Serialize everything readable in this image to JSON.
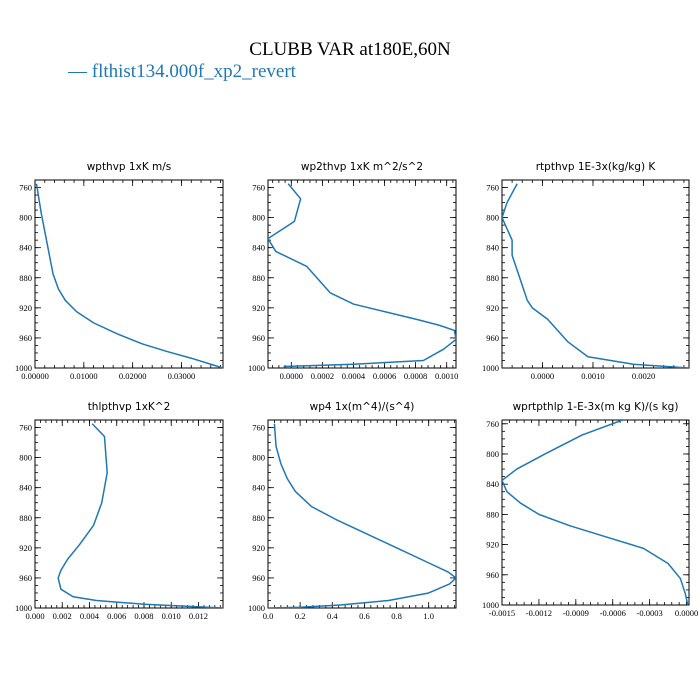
{
  "title": "CLUBB VAR at180E,60N",
  "legend": {
    "label": "— flthist134.000f_xp2_revert",
    "color": "#1f77b4"
  },
  "chart_data": [
    {
      "type": "line",
      "title": "wpthvp   1xK m/s",
      "series_name": "flthist134.000f_xp2_revert",
      "xlim": [
        0,
        0.0385
      ],
      "ylim": [
        1000,
        750
      ],
      "xticks": [
        0,
        0.01,
        0.02,
        0.03
      ],
      "xtick_labels": [
        "0.00000",
        "0.01000",
        "0.02000",
        "0.03000"
      ],
      "yticks": [
        760,
        800,
        840,
        880,
        920,
        960,
        1000
      ],
      "ytick_labels": [
        "760",
        "800",
        "840",
        "880",
        "920",
        "960",
        "1000"
      ],
      "x": [
        0.0003,
        0.0008,
        0.0013,
        0.0019,
        0.0025,
        0.0031,
        0.0037,
        0.0048,
        0.0062,
        0.0085,
        0.012,
        0.017,
        0.022,
        0.027,
        0.032,
        0.036,
        0.0385
      ],
      "y": [
        755,
        775,
        795,
        815,
        835,
        855,
        875,
        895,
        910,
        925,
        940,
        955,
        968,
        978,
        987,
        995,
        1000
      ]
    },
    {
      "type": "line",
      "title": "wp2thvp   1xK m^2/s^2",
      "series_name": "flthist134.000f_xp2_revert",
      "xlim": [
        -0.00015,
        0.00106
      ],
      "ylim": [
        1000,
        750
      ],
      "xticks": [
        0,
        0.0002,
        0.0004,
        0.0006,
        0.0008,
        0.001
      ],
      "xtick_labels": [
        "0.0000",
        "0.0002",
        "0.0004",
        "0.0006",
        "0.0008",
        "0.0010"
      ],
      "yticks": [
        760,
        800,
        840,
        880,
        920,
        960,
        1000
      ],
      "ytick_labels": [
        "760",
        "800",
        "840",
        "880",
        "920",
        "960",
        "1000"
      ],
      "x": [
        -2e-05,
        6e-05,
        2e-05,
        -0.00015,
        -0.0001,
        0.0001,
        0.00025,
        0.0004,
        0.0006,
        0.0008,
        0.00095,
        0.00105,
        0.00106,
        0.00098,
        0.00085,
        0.0004,
        -5e-05
      ],
      "y": [
        755,
        775,
        805,
        828,
        845,
        865,
        900,
        915,
        925,
        935,
        943,
        950,
        962,
        975,
        990,
        995,
        998
      ]
    },
    {
      "type": "line",
      "title": "rtpthvp   1E-3x(kg/kg) K",
      "series_name": "flthist134.000f_xp2_revert",
      "xlim": [
        -0.0008,
        0.0029
      ],
      "ylim": [
        1000,
        750
      ],
      "xticks": [
        0,
        0.001,
        0.002
      ],
      "xtick_labels": [
        "0.0000",
        "0.0010",
        "0.0020"
      ],
      "yticks": [
        760,
        800,
        840,
        880,
        920,
        960,
        1000
      ],
      "ytick_labels": [
        "760",
        "800",
        "840",
        "880",
        "920",
        "960",
        "1000"
      ],
      "x": [
        -0.0005,
        -0.0007,
        -0.0008,
        -0.0006,
        -0.0006,
        -0.0005,
        -0.0004,
        -0.0003,
        -0.0002,
        0.0001,
        0.0003,
        0.0005,
        0.0009,
        0.0018,
        0.0029
      ],
      "y": [
        755,
        780,
        800,
        830,
        850,
        870,
        890,
        910,
        920,
        935,
        950,
        965,
        985,
        995,
        1000
      ]
    },
    {
      "type": "line",
      "title": "thlpthvp   1xK^2",
      "series_name": "flthist134.000f_xp2_revert",
      "xlim": [
        0,
        0.0138
      ],
      "ylim": [
        1000,
        750
      ],
      "xticks": [
        0,
        0.002,
        0.004,
        0.006,
        0.008,
        0.01,
        0.012
      ],
      "xtick_labels": [
        "0.000",
        "0.002",
        "0.004",
        "0.006",
        "0.008",
        "0.010",
        "0.012"
      ],
      "yticks": [
        760,
        800,
        840,
        880,
        920,
        960,
        1000
      ],
      "ytick_labels": [
        "760",
        "800",
        "840",
        "880",
        "920",
        "960",
        "1000"
      ],
      "x": [
        0.0042,
        0.0051,
        0.0053,
        0.0049,
        0.0043,
        0.0033,
        0.0024,
        0.0019,
        0.0017,
        0.0019,
        0.0028,
        0.0045,
        0.008,
        0.0115,
        0.0138
      ],
      "y": [
        755,
        772,
        820,
        860,
        890,
        915,
        935,
        950,
        960,
        975,
        985,
        990,
        995,
        998,
        1000
      ]
    },
    {
      "type": "line",
      "title": "wp4   1x(m^4)/(s^4)",
      "series_name": "flthist134.000f_xp2_revert",
      "xlim": [
        0,
        1.17
      ],
      "ylim": [
        1000,
        750
      ],
      "xticks": [
        0,
        0.2,
        0.4,
        0.6,
        0.8,
        1.0
      ],
      "xtick_labels": [
        "0.0",
        "0.2",
        "0.4",
        "0.6",
        "0.8",
        "1.0"
      ],
      "yticks": [
        760,
        800,
        840,
        880,
        920,
        960,
        1000
      ],
      "ytick_labels": [
        "760",
        "800",
        "840",
        "880",
        "920",
        "960",
        "1000"
      ],
      "x": [
        0.04,
        0.05,
        0.08,
        0.12,
        0.17,
        0.27,
        0.42,
        0.6,
        0.8,
        1.0,
        1.12,
        1.17,
        1.13,
        1.0,
        0.75,
        0.45,
        0.2,
        0.0
      ],
      "y": [
        755,
        785,
        808,
        828,
        845,
        865,
        882,
        900,
        920,
        940,
        952,
        960,
        968,
        980,
        990,
        996,
        999,
        1000
      ]
    },
    {
      "type": "line",
      "title": "wprtpthlp   1-E-3x(m kg K)/(s kg)",
      "series_name": "flthist134.000f_xp2_revert",
      "xlim": [
        -0.0015,
        2e-05
      ],
      "ylim": [
        1000,
        755
      ],
      "xticks": [
        -0.0015,
        -0.0012,
        -0.0009,
        -0.0006,
        -0.0003,
        0.0
      ],
      "xtick_labels": [
        "-0.0015",
        "-0.0012",
        "-0.0009",
        "-0.0006",
        "-0.0003",
        "0.0000"
      ],
      "yticks": [
        760,
        800,
        840,
        880,
        920,
        960,
        1000
      ],
      "ytick_labels": [
        "760",
        "800",
        "840",
        "880",
        "920",
        "960",
        "1000"
      ],
      "x": [
        -0.00052,
        -0.00085,
        -0.00115,
        -0.00138,
        -0.0015,
        -0.00146,
        -0.00135,
        -0.0012,
        -0.00095,
        -0.00065,
        -0.00035,
        -0.00015,
        -5e-05,
        -1e-05,
        1e-05
      ],
      "y": [
        755,
        775,
        800,
        820,
        835,
        850,
        865,
        880,
        895,
        910,
        925,
        945,
        965,
        985,
        1000
      ]
    }
  ]
}
